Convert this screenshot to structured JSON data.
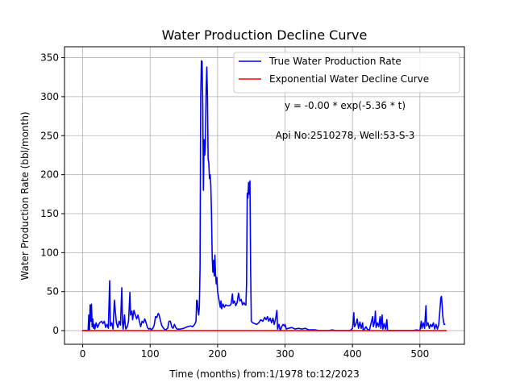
{
  "chart_data": {
    "type": "line",
    "title": "Water Production Decline Curve",
    "xlabel": "Time (months) from:1/1978 to:12/2023",
    "ylabel": "Water Production Rate (bbl/month)",
    "xlim": [
      -27,
      566
    ],
    "ylim": [
      -17.5,
      364
    ],
    "xticks": [
      0,
      100,
      200,
      300,
      400,
      500
    ],
    "yticks": [
      0,
      50,
      100,
      150,
      200,
      250,
      300,
      350
    ],
    "grid": true,
    "legend_position": "top-right",
    "annotations": [
      "y = -0.00 * exp(-5.36 * t)",
      "Api No:2510278, Well:53-S-3"
    ],
    "series": [
      {
        "name": "True Water Production Rate",
        "color": "#0000ff",
        "points": [
          [
            0,
            0
          ],
          [
            8,
            0
          ],
          [
            9,
            20
          ],
          [
            10,
            0
          ],
          [
            11,
            33
          ],
          [
            12,
            12
          ],
          [
            13,
            34
          ],
          [
            14,
            5
          ],
          [
            15,
            15
          ],
          [
            16,
            3
          ],
          [
            17,
            8
          ],
          [
            18,
            2
          ],
          [
            20,
            10
          ],
          [
            22,
            4
          ],
          [
            25,
            10
          ],
          [
            28,
            12
          ],
          [
            30,
            9
          ],
          [
            32,
            12
          ],
          [
            34,
            4
          ],
          [
            36,
            8
          ],
          [
            38,
            3
          ],
          [
            40,
            64
          ],
          [
            41,
            6
          ],
          [
            43,
            10
          ],
          [
            45,
            2
          ],
          [
            47,
            39
          ],
          [
            48,
            28
          ],
          [
            50,
            10
          ],
          [
            52,
            4
          ],
          [
            54,
            12
          ],
          [
            56,
            7
          ],
          [
            58,
            55
          ],
          [
            59,
            10
          ],
          [
            60,
            2
          ],
          [
            62,
            20
          ],
          [
            63,
            8
          ],
          [
            64,
            2
          ],
          [
            66,
            5
          ],
          [
            68,
            12
          ],
          [
            70,
            49
          ],
          [
            71,
            20
          ],
          [
            73,
            25
          ],
          [
            74,
            14
          ],
          [
            76,
            26
          ],
          [
            78,
            20
          ],
          [
            80,
            15
          ],
          [
            82,
            20
          ],
          [
            84,
            12
          ],
          [
            86,
            5
          ],
          [
            88,
            12
          ],
          [
            90,
            10
          ],
          [
            92,
            15
          ],
          [
            94,
            10
          ],
          [
            96,
            4
          ],
          [
            98,
            2
          ],
          [
            100,
            3
          ],
          [
            102,
            1
          ],
          [
            104,
            3
          ],
          [
            106,
            7
          ],
          [
            108,
            18
          ],
          [
            110,
            17
          ],
          [
            112,
            22
          ],
          [
            113,
            21
          ],
          [
            115,
            14
          ],
          [
            117,
            7
          ],
          [
            119,
            4
          ],
          [
            121,
            2
          ],
          [
            123,
            1
          ],
          [
            126,
            3
          ],
          [
            128,
            12
          ],
          [
            130,
            12
          ],
          [
            132,
            5
          ],
          [
            134,
            3
          ],
          [
            136,
            8
          ],
          [
            138,
            4
          ],
          [
            140,
            2
          ],
          [
            145,
            2
          ],
          [
            150,
            3
          ],
          [
            155,
            5
          ],
          [
            160,
            6
          ],
          [
            163,
            5
          ],
          [
            166,
            8
          ],
          [
            168,
            12
          ],
          [
            169,
            39
          ],
          [
            170,
            38
          ],
          [
            171,
            26
          ],
          [
            172,
            20
          ],
          [
            173,
            30
          ],
          [
            174,
            80
          ],
          [
            175,
            300
          ],
          [
            176,
            346
          ],
          [
            177,
            345
          ],
          [
            178,
            290
          ],
          [
            179,
            180
          ],
          [
            180,
            245
          ],
          [
            181,
            225
          ],
          [
            182,
            240
          ],
          [
            183,
            310
          ],
          [
            184,
            338
          ],
          [
            185,
            300
          ],
          [
            186,
            220
          ],
          [
            187,
            215
          ],
          [
            188,
            195
          ],
          [
            189,
            200
          ],
          [
            190,
            185
          ],
          [
            191,
            150
          ],
          [
            192,
            95
          ],
          [
            193,
            75
          ],
          [
            194,
            90
          ],
          [
            195,
            70
          ],
          [
            196,
            97
          ],
          [
            197,
            72
          ],
          [
            198,
            60
          ],
          [
            199,
            68
          ],
          [
            200,
            50
          ],
          [
            201,
            45
          ],
          [
            202,
            40
          ],
          [
            203,
            35
          ],
          [
            204,
            30
          ],
          [
            205,
            38
          ],
          [
            206,
            28
          ],
          [
            208,
            34
          ],
          [
            210,
            30
          ],
          [
            212,
            33
          ],
          [
            214,
            32
          ],
          [
            216,
            32
          ],
          [
            218,
            32
          ],
          [
            220,
            34
          ],
          [
            222,
            47
          ],
          [
            223,
            35
          ],
          [
            225,
            38
          ],
          [
            227,
            32
          ],
          [
            229,
            36
          ],
          [
            231,
            48
          ],
          [
            233,
            38
          ],
          [
            235,
            40
          ],
          [
            237,
            33
          ],
          [
            239,
            36
          ],
          [
            241,
            33
          ],
          [
            242,
            33
          ],
          [
            243,
            60
          ],
          [
            244,
            176
          ],
          [
            245,
            170
          ],
          [
            246,
            190
          ],
          [
            247,
            175
          ],
          [
            248,
            192
          ],
          [
            249,
            80
          ],
          [
            250,
            12
          ],
          [
            252,
            10
          ],
          [
            255,
            9
          ],
          [
            258,
            8
          ],
          [
            261,
            10
          ],
          [
            264,
            14
          ],
          [
            267,
            12
          ],
          [
            270,
            17
          ],
          [
            272,
            14
          ],
          [
            274,
            18
          ],
          [
            276,
            12
          ],
          [
            278,
            16
          ],
          [
            280,
            10
          ],
          [
            282,
            16
          ],
          [
            284,
            8
          ],
          [
            286,
            15
          ],
          [
            288,
            26
          ],
          [
            289,
            2
          ],
          [
            291,
            8
          ],
          [
            293,
            0
          ],
          [
            295,
            5
          ],
          [
            297,
            8
          ],
          [
            299,
            6
          ],
          [
            300,
            8
          ],
          [
            302,
            2
          ],
          [
            305,
            3
          ],
          [
            310,
            4
          ],
          [
            315,
            2
          ],
          [
            320,
            3
          ],
          [
            325,
            2
          ],
          [
            330,
            3
          ],
          [
            335,
            1
          ],
          [
            340,
            1
          ],
          [
            345,
            1
          ],
          [
            350,
            0
          ],
          [
            355,
            0
          ],
          [
            360,
            0
          ],
          [
            365,
            0
          ],
          [
            370,
            1
          ],
          [
            375,
            0
          ],
          [
            380,
            0
          ],
          [
            385,
            0
          ],
          [
            390,
            0
          ],
          [
            395,
            0
          ],
          [
            398,
            1
          ],
          [
            400,
            3
          ],
          [
            401,
            10
          ],
          [
            402,
            23
          ],
          [
            403,
            5
          ],
          [
            405,
            8
          ],
          [
            407,
            15
          ],
          [
            409,
            3
          ],
          [
            411,
            11
          ],
          [
            413,
            3
          ],
          [
            415,
            10
          ],
          [
            416,
            0
          ],
          [
            418,
            2
          ],
          [
            420,
            5
          ],
          [
            422,
            2
          ],
          [
            425,
            0
          ],
          [
            430,
            18
          ],
          [
            431,
            5
          ],
          [
            433,
            12
          ],
          [
            434,
            25
          ],
          [
            435,
            4
          ],
          [
            437,
            10
          ],
          [
            439,
            5
          ],
          [
            441,
            18
          ],
          [
            442,
            3
          ],
          [
            444,
            20
          ],
          [
            445,
            2
          ],
          [
            447,
            9
          ],
          [
            449,
            2
          ],
          [
            451,
            14
          ],
          [
            452,
            0
          ],
          [
            455,
            0
          ],
          [
            460,
            0
          ],
          [
            465,
            0
          ],
          [
            470,
            0
          ],
          [
            475,
            0
          ],
          [
            480,
            0
          ],
          [
            485,
            0
          ],
          [
            490,
            0
          ],
          [
            495,
            1
          ],
          [
            500,
            0
          ],
          [
            502,
            12
          ],
          [
            503,
            3
          ],
          [
            505,
            10
          ],
          [
            507,
            3
          ],
          [
            509,
            32
          ],
          [
            510,
            6
          ],
          [
            512,
            10
          ],
          [
            514,
            3
          ],
          [
            516,
            8
          ],
          [
            518,
            5
          ],
          [
            520,
            10
          ],
          [
            522,
            2
          ],
          [
            524,
            8
          ],
          [
            526,
            2
          ],
          [
            528,
            8
          ],
          [
            530,
            30
          ],
          [
            531,
            42
          ],
          [
            532,
            44
          ],
          [
            533,
            32
          ],
          [
            534,
            18
          ],
          [
            535,
            12
          ],
          [
            536,
            8
          ],
          [
            537,
            8
          ]
        ]
      },
      {
        "name": "Exponential Water Decline Curve",
        "color": "#ff0000",
        "points": [
          [
            0,
            0
          ],
          [
            539,
            0
          ]
        ]
      }
    ]
  }
}
